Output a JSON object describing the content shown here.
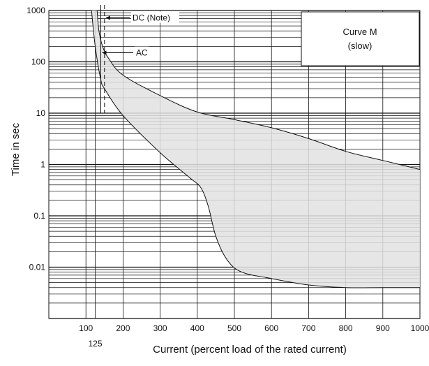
{
  "chart_data": {
    "type": "area",
    "title_box": {
      "line1": "Curve M",
      "line2": "(slow)"
    },
    "xlabel": "Current (percent load of the rated current)",
    "ylabel": "Time in sec",
    "x_scale": "linear",
    "y_scale": "log",
    "xlim": [
      0,
      1000
    ],
    "ylim": [
      0.001,
      1000
    ],
    "x_ticks": [
      100,
      200,
      300,
      400,
      500,
      600,
      700,
      800,
      900,
      1000
    ],
    "x_extra_tick": {
      "value": 125,
      "label": "125"
    },
    "y_ticks": [
      {
        "value": 1000,
        "label": "1000"
      },
      {
        "value": 100,
        "label": "100"
      },
      {
        "value": 10,
        "label": "10"
      },
      {
        "value": 1,
        "label": "1"
      },
      {
        "value": 0.1,
        "label": "0.1"
      },
      {
        "value": 0.01,
        "label": "0.01"
      }
    ],
    "grid": true,
    "fill_color": "#e2e2e2",
    "line_color": "#111111",
    "upper_curve": [
      [
        130,
        1000
      ],
      [
        135,
        400
      ],
      [
        145,
        200
      ],
      [
        160,
        120
      ],
      [
        200,
        55
      ],
      [
        300,
        22
      ],
      [
        400,
        10.5
      ],
      [
        500,
        7.5
      ],
      [
        600,
        5.2
      ],
      [
        700,
        3.2
      ],
      [
        800,
        1.8
      ],
      [
        900,
        1.2
      ],
      [
        1000,
        0.8
      ]
    ],
    "lower_curve": [
      [
        115,
        1000
      ],
      [
        125,
        200
      ],
      [
        140,
        45
      ],
      [
        150,
        30
      ],
      [
        200,
        9
      ],
      [
        300,
        1.7
      ],
      [
        380,
        0.55
      ],
      [
        410,
        0.35
      ],
      [
        430,
        0.15
      ],
      [
        450,
        0.04
      ],
      [
        480,
        0.014
      ],
      [
        520,
        0.008
      ],
      [
        600,
        0.006
      ],
      [
        700,
        0.0045
      ],
      [
        800,
        0.004
      ],
      [
        900,
        0.004
      ],
      [
        1000,
        0.004
      ]
    ],
    "annotations": [
      {
        "label": "DC (Note)",
        "x": 150,
        "y_top": 1000,
        "y_bottom": 10,
        "line_style": "dashed",
        "arrow_at": 720
      },
      {
        "label": "AC",
        "x": 140,
        "y_top": 1000,
        "y_bottom": 10,
        "line_style": "solid",
        "arrow_at": 150
      }
    ]
  }
}
